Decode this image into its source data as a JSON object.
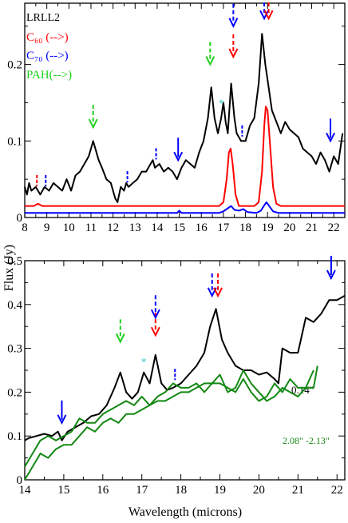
{
  "xlabel": "Wavelength (microns)",
  "ylabel": "Flux (Jy)",
  "colors": {
    "black": "#000000",
    "red": "#ff0000",
    "blue": "#0000ff",
    "green": "#1fd11f",
    "darkgreen": "#138813",
    "cyan": "#33cccc"
  },
  "chart_data": [
    {
      "type": "line",
      "panel": "top",
      "xlim": [
        8,
        22.5
      ],
      "ylim": [
        0,
        0.28
      ],
      "x_ticks": [
        "8",
        "9",
        "10",
        "11",
        "12",
        "13",
        "14",
        "15",
        "16",
        "17",
        "18",
        "19",
        "20",
        "21",
        "22"
      ],
      "y_ticks": [
        "0",
        "0.1",
        "0.2"
      ],
      "legend": [
        {
          "label": "LRLL2",
          "color": "#000000"
        },
        {
          "label": "C₆₀ (-->)",
          "color": "#ff0000"
        },
        {
          "label": "C₇₀ (-->)",
          "color": "#0000ff"
        },
        {
          "label": "PAH(-->)",
          "color": "#1fd11f"
        }
      ],
      "series": [
        {
          "color": "#000000",
          "x": [
            8.0,
            8.1,
            8.2,
            8.3,
            8.5,
            8.7,
            8.9,
            9.1,
            9.3,
            9.5,
            9.7,
            9.9,
            10.1,
            10.3,
            10.5,
            10.7,
            10.9,
            11.0,
            11.1,
            11.2,
            11.35,
            11.5,
            11.7,
            11.9,
            12.0,
            12.1,
            12.2,
            12.35,
            12.5,
            12.6,
            12.7,
            12.9,
            13.1,
            13.3,
            13.5,
            13.7,
            13.8,
            13.9,
            14.1,
            14.3,
            14.5,
            14.7,
            14.9,
            15.1,
            15.3,
            15.5,
            15.7,
            15.9,
            16.1,
            16.3,
            16.45,
            16.6,
            16.75,
            16.9,
            17.0,
            17.1,
            17.2,
            17.35,
            17.5,
            17.6,
            17.7,
            17.8,
            18.0,
            18.2,
            18.4,
            18.6,
            18.75,
            18.9,
            19.05,
            19.2,
            19.4,
            19.6,
            19.8,
            20.0,
            20.2,
            20.4,
            20.6,
            20.8,
            21.0,
            21.2,
            21.4,
            21.6,
            21.8,
            22.0,
            22.2,
            22.4
          ],
          "y": [
            0.04,
            0.03,
            0.045,
            0.035,
            0.04,
            0.03,
            0.04,
            0.035,
            0.045,
            0.04,
            0.035,
            0.05,
            0.035,
            0.055,
            0.06,
            0.07,
            0.08,
            0.09,
            0.1,
            0.09,
            0.075,
            0.065,
            0.05,
            0.045,
            0.035,
            0.025,
            0.02,
            0.04,
            0.035,
            0.045,
            0.04,
            0.045,
            0.05,
            0.06,
            0.06,
            0.07,
            0.075,
            0.065,
            0.07,
            0.06,
            0.065,
            0.06,
            0.05,
            0.065,
            0.075,
            0.07,
            0.065,
            0.085,
            0.1,
            0.13,
            0.17,
            0.13,
            0.11,
            0.13,
            0.15,
            0.125,
            0.11,
            0.175,
            0.13,
            0.11,
            0.105,
            0.1,
            0.1,
            0.12,
            0.13,
            0.175,
            0.24,
            0.2,
            0.17,
            0.14,
            0.125,
            0.11,
            0.125,
            0.115,
            0.11,
            0.105,
            0.09,
            0.085,
            0.08,
            0.07,
            0.085,
            0.075,
            0.06,
            0.08,
            0.07,
            0.11
          ]
        },
        {
          "color": "#ff0000",
          "x": [
            8.0,
            8.4,
            8.6,
            8.8,
            9.0,
            10,
            11,
            12,
            13,
            14,
            15,
            16,
            16.8,
            17.0,
            17.15,
            17.25,
            17.33,
            17.42,
            17.55,
            17.7,
            18.0,
            18.4,
            18.6,
            18.75,
            18.85,
            18.92,
            19.0,
            19.1,
            19.25,
            19.4,
            19.6,
            20,
            21,
            22,
            22.5
          ],
          "y": [
            0.015,
            0.015,
            0.018,
            0.015,
            0.015,
            0.015,
            0.015,
            0.015,
            0.015,
            0.015,
            0.015,
            0.015,
            0.015,
            0.02,
            0.05,
            0.085,
            0.09,
            0.07,
            0.03,
            0.015,
            0.015,
            0.015,
            0.02,
            0.06,
            0.12,
            0.145,
            0.14,
            0.1,
            0.04,
            0.018,
            0.015,
            0.015,
            0.015,
            0.015,
            0.015
          ]
        },
        {
          "color": "#0000ff",
          "x": [
            8.0,
            9,
            10,
            11,
            12,
            13,
            14,
            14.9,
            15.0,
            15.1,
            16,
            16.8,
            17.0,
            17.2,
            17.35,
            17.5,
            17.7,
            17.9,
            18.1,
            18.5,
            18.7,
            18.85,
            18.95,
            19.05,
            19.25,
            19.5,
            20,
            21,
            22,
            22.5
          ],
          "y": [
            0.006,
            0.006,
            0.006,
            0.006,
            0.006,
            0.006,
            0.006,
            0.006,
            0.009,
            0.006,
            0.006,
            0.006,
            0.008,
            0.012,
            0.015,
            0.01,
            0.009,
            0.011,
            0.007,
            0.006,
            0.009,
            0.016,
            0.02,
            0.016,
            0.008,
            0.006,
            0.006,
            0.006,
            0.006,
            0.006
          ]
        }
      ],
      "annotations": [
        {
          "kind": "arrow",
          "x": 11.1,
          "y": 0.118,
          "color": "#1fd11f",
          "dashed": true
        },
        {
          "kind": "arrow",
          "x": 16.4,
          "y": 0.2,
          "color": "#1fd11f",
          "dashed": true
        },
        {
          "kind": "arrow",
          "x": 17.45,
          "y": 0.21,
          "color": "#ff0000",
          "dashed": true
        },
        {
          "kind": "arrow",
          "x": 17.45,
          "y": 0.25,
          "color": "#0000ff",
          "dashed": true
        },
        {
          "kind": "arrow",
          "x": 18.85,
          "y": 0.26,
          "color": "#0000ff",
          "dashed": true
        },
        {
          "kind": "arrow",
          "x": 19.05,
          "y": 0.26,
          "color": "#ff0000",
          "dashed": true
        },
        {
          "kind": "arrow",
          "x": 14.95,
          "y": 0.075,
          "color": "#0000ff",
          "dashed": false
        },
        {
          "kind": "arrow",
          "x": 21.85,
          "y": 0.1,
          "color": "#0000ff",
          "dashed": false
        },
        {
          "kind": "tick",
          "x": 8.55,
          "y": 0.045,
          "color": "#ff0000"
        },
        {
          "kind": "tick",
          "x": 8.95,
          "y": 0.045,
          "color": "#0000ff"
        },
        {
          "kind": "tick",
          "x": 12.65,
          "y": 0.05,
          "color": "#0000ff"
        },
        {
          "kind": "tick",
          "x": 13.95,
          "y": 0.08,
          "color": "#0000ff"
        },
        {
          "kind": "tick",
          "x": 17.85,
          "y": 0.11,
          "color": "#0000ff"
        },
        {
          "kind": "star",
          "x": 16.9,
          "y": 0.15,
          "color": "#33cccc"
        }
      ]
    },
    {
      "type": "line",
      "panel": "bottom",
      "xlim": [
        14,
        22.2
      ],
      "ylim": [
        0,
        0.5
      ],
      "x_ticks": [
        "14",
        "15",
        "16",
        "17",
        "18",
        "19",
        "20",
        "21",
        "22"
      ],
      "y_ticks": [
        "0",
        "0.1",
        "0.2",
        "0.3",
        "0.4",
        "0.5"
      ],
      "labels": [
        {
          "text": "0.14\"",
          "color": "#000000"
        },
        {
          "text": "2.08\" -2.13\"",
          "color": "#138813"
        }
      ],
      "series": [
        {
          "color": "#000000",
          "x": [
            14.0,
            14.1,
            14.3,
            14.5,
            14.7,
            14.85,
            14.95,
            15.1,
            15.3,
            15.5,
            15.7,
            15.9,
            16.1,
            16.3,
            16.45,
            16.6,
            16.75,
            16.9,
            17.05,
            17.2,
            17.35,
            17.5,
            17.65,
            17.8,
            18.0,
            18.2,
            18.4,
            18.6,
            18.75,
            18.9,
            19.05,
            19.2,
            19.4,
            19.6,
            19.8,
            20.0,
            20.2,
            20.4,
            20.5,
            20.6,
            20.8,
            21.0,
            21.2,
            21.4,
            21.6,
            21.8,
            22.0,
            22.2
          ],
          "y": [
            0.09,
            0.095,
            0.1,
            0.105,
            0.1,
            0.11,
            0.09,
            0.11,
            0.12,
            0.13,
            0.145,
            0.15,
            0.17,
            0.21,
            0.245,
            0.2,
            0.185,
            0.2,
            0.245,
            0.22,
            0.285,
            0.22,
            0.205,
            0.21,
            0.22,
            0.24,
            0.26,
            0.29,
            0.35,
            0.39,
            0.32,
            0.29,
            0.26,
            0.25,
            0.25,
            0.24,
            0.245,
            0.23,
            0.22,
            0.3,
            0.29,
            0.29,
            0.37,
            0.36,
            0.38,
            0.41,
            0.41,
            0.42
          ]
        },
        {
          "color": "#138813",
          "x": [
            14.0,
            14.2,
            14.4,
            14.6,
            14.8,
            15.0,
            15.2,
            15.4,
            15.6,
            15.8,
            16.0,
            16.2,
            16.4,
            16.6,
            16.8,
            17.0,
            17.2,
            17.4,
            17.6,
            17.8,
            18.0,
            18.2,
            18.4,
            18.6,
            18.8,
            19.0,
            19.2,
            19.4,
            19.6,
            19.8,
            20.0,
            20.2,
            20.4,
            20.6,
            20.8,
            21.0,
            21.2,
            21.4,
            21.5
          ],
          "y": [
            0.0,
            0.03,
            0.06,
            0.05,
            0.07,
            0.08,
            0.08,
            0.1,
            0.12,
            0.11,
            0.13,
            0.14,
            0.13,
            0.15,
            0.15,
            0.16,
            0.17,
            0.18,
            0.18,
            0.19,
            0.2,
            0.2,
            0.21,
            0.22,
            0.22,
            0.24,
            0.2,
            0.21,
            0.25,
            0.22,
            0.2,
            0.18,
            0.19,
            0.21,
            0.2,
            0.19,
            0.21,
            0.21,
            0.26
          ]
        },
        {
          "color": "#138813",
          "x": [
            14.0,
            14.2,
            14.4,
            14.6,
            14.8,
            15.0,
            15.2,
            15.4,
            15.6,
            15.8,
            16.0,
            16.2,
            16.4,
            16.6,
            16.8,
            17.0,
            17.2,
            17.4,
            17.6,
            17.8,
            18.0,
            18.2,
            18.4,
            18.6,
            18.8,
            19.0,
            19.2,
            19.4,
            19.6,
            19.8,
            20.0,
            20.2,
            20.4,
            20.6,
            20.8,
            21.0,
            21.2,
            21.4
          ],
          "y": [
            0.03,
            0.06,
            0.09,
            0.1,
            0.09,
            0.1,
            0.11,
            0.14,
            0.13,
            0.13,
            0.15,
            0.16,
            0.17,
            0.18,
            0.17,
            0.19,
            0.17,
            0.19,
            0.2,
            0.22,
            0.21,
            0.21,
            0.22,
            0.2,
            0.22,
            0.22,
            0.21,
            0.2,
            0.23,
            0.2,
            0.18,
            0.19,
            0.22,
            0.2,
            0.23,
            0.21,
            0.21,
            0.25
          ]
        }
      ],
      "annotations": [
        {
          "kind": "arrow",
          "x": 16.45,
          "y": 0.315,
          "color": "#1fd11f",
          "dashed": true
        },
        {
          "kind": "arrow",
          "x": 17.35,
          "y": 0.33,
          "color": "#ff0000",
          "dashed": true
        },
        {
          "kind": "arrow",
          "x": 17.35,
          "y": 0.37,
          "color": "#0000ff",
          "dashed": true
        },
        {
          "kind": "arrow",
          "x": 18.8,
          "y": 0.42,
          "color": "#0000ff",
          "dashed": true
        },
        {
          "kind": "arrow",
          "x": 18.95,
          "y": 0.42,
          "color": "#ff0000",
          "dashed": true
        },
        {
          "kind": "arrow",
          "x": 14.95,
          "y": 0.13,
          "color": "#0000ff",
          "dashed": false
        },
        {
          "kind": "arrow",
          "x": 21.85,
          "y": 0.46,
          "color": "#0000ff",
          "dashed": false
        },
        {
          "kind": "tick",
          "x": 17.85,
          "y": 0.235,
          "color": "#0000ff"
        },
        {
          "kind": "star",
          "x": 17.05,
          "y": 0.27,
          "color": "#33cccc"
        }
      ]
    }
  ]
}
